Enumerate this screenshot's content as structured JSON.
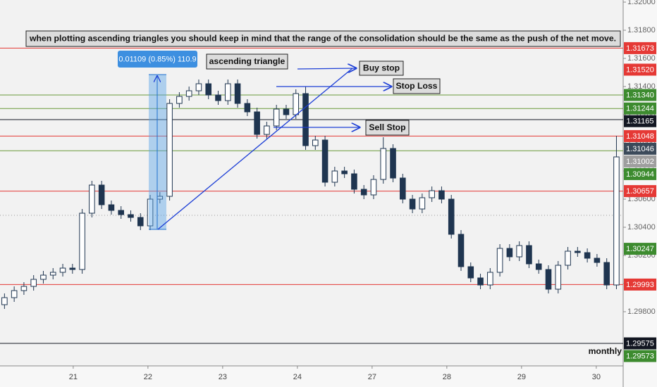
{
  "chart_data": {
    "type": "candlestick",
    "annotations": {
      "note": "when plotting ascending triangles you should keep in mind that the range of the consolidation should be the same as the push of the net move.",
      "pattern": "ascending triangle",
      "buy_stop": "Buy stop",
      "stop_loss": "Stop Loss",
      "sell_stop": "Sell Stop",
      "timeframe": "monthly",
      "measure": "0.01109 (0.85%) 110.9"
    },
    "xlim": [
      0.02,
      8.36
    ],
    "xticks": [
      {
        "value": 1,
        "label": "21"
      },
      {
        "value": 2,
        "label": "22"
      },
      {
        "value": 3,
        "label": "23"
      },
      {
        "value": 4,
        "label": "24"
      },
      {
        "value": 5,
        "label": "27"
      },
      {
        "value": 6,
        "label": "28"
      },
      {
        "value": 7,
        "label": "29"
      },
      {
        "value": 8,
        "label": "30"
      }
    ],
    "ylim": [
      1.29415,
      1.32015
    ],
    "yticks": [
      {
        "value": 1.298,
        "label": "1.29800"
      },
      {
        "value": 1.3,
        "label": "1.30000"
      },
      {
        "value": 1.302,
        "label": "1.30200"
      },
      {
        "value": 1.304,
        "label": "1.30400"
      },
      {
        "value": 1.306,
        "label": "1.30600"
      },
      {
        "value": 1.308,
        "label": "1.30800"
      },
      {
        "value": 1.31,
        "label": "1.31000"
      },
      {
        "value": 1.312,
        "label": "1.31200"
      },
      {
        "value": 1.314,
        "label": "1.31400"
      },
      {
        "value": 1.316,
        "label": "1.31600"
      },
      {
        "value": 1.318,
        "label": "1.31800"
      },
      {
        "value": 1.32,
        "label": "1.32000"
      }
    ],
    "up_color": "#ffffff",
    "down_color": "#1f3550",
    "x": [
      0.08,
      0.21,
      0.34,
      0.47,
      0.6,
      0.73,
      0.86,
      0.99,
      1.12,
      1.25,
      1.38,
      1.51,
      1.64,
      1.77,
      1.9,
      2.03,
      2.16,
      2.29,
      2.42,
      2.55,
      2.68,
      2.81,
      2.94,
      3.07,
      3.2,
      3.33,
      3.46,
      3.59,
      3.72,
      3.85,
      3.98,
      4.11,
      4.24,
      4.37,
      4.5,
      4.63,
      4.76,
      4.89,
      5.02,
      5.15,
      5.28,
      5.41,
      5.54,
      5.67,
      5.8,
      5.93,
      6.06,
      6.19,
      6.32,
      6.45,
      6.58,
      6.71,
      6.84,
      6.97,
      7.1,
      7.23,
      7.36,
      7.49,
      7.62,
      7.75,
      7.88,
      8.01,
      8.14,
      8.27
    ],
    "open": [
      1.2985,
      1.299,
      1.2995,
      1.2998,
      1.3003,
      1.3006,
      1.3008,
      1.3011,
      1.301,
      1.305,
      1.307,
      1.3056,
      1.3052,
      1.3049,
      1.3047,
      1.3041,
      1.306,
      1.3062,
      1.3128,
      1.3133,
      1.3137,
      1.3142,
      1.3134,
      1.313,
      1.3142,
      1.3128,
      1.3122,
      1.3106,
      1.3112,
      1.3124,
      1.312,
      1.3135,
      1.3098,
      1.3102,
      1.3072,
      1.308,
      1.3078,
      1.3067,
      1.3063,
      1.3074,
      1.3096,
      1.3075,
      1.306,
      1.3053,
      1.3061,
      1.3066,
      1.306,
      1.3035,
      1.3012,
      1.3004,
      1.2999,
      1.3008,
      1.3025,
      1.3019,
      1.3027,
      1.3014,
      1.301,
      1.2996,
      1.3013,
      1.3023,
      1.3022,
      1.3018,
      1.3015,
      1.2999
    ],
    "high": [
      1.2993,
      1.2998,
      1.3001,
      1.3006,
      1.3009,
      1.3011,
      1.3014,
      1.3014,
      1.3053,
      1.3073,
      1.3073,
      1.3059,
      1.3055,
      1.3052,
      1.305,
      1.3063,
      1.3065,
      1.3131,
      1.3136,
      1.314,
      1.3145,
      1.3145,
      1.3137,
      1.3145,
      1.3145,
      1.3131,
      1.3125,
      1.3115,
      1.3127,
      1.3127,
      1.3138,
      1.314,
      1.3105,
      1.3105,
      1.3083,
      1.3083,
      1.3081,
      1.307,
      1.3077,
      1.3104,
      1.3099,
      1.3078,
      1.3063,
      1.3064,
      1.3069,
      1.3069,
      1.3063,
      1.3038,
      1.3015,
      1.3007,
      1.3011,
      1.3028,
      1.3028,
      1.303,
      1.303,
      1.3017,
      1.3013,
      1.3016,
      1.3026,
      1.3026,
      1.3025,
      1.3021,
      1.3018,
      1.3105
    ],
    "low": [
      1.2982,
      1.2987,
      1.2992,
      1.2995,
      1.3,
      1.3003,
      1.3005,
      1.3007,
      1.3007,
      1.3047,
      1.3053,
      1.3049,
      1.3046,
      1.3044,
      1.3038,
      1.3038,
      1.3057,
      1.3059,
      1.3125,
      1.313,
      1.3134,
      1.3131,
      1.3127,
      1.3127,
      1.3125,
      1.3119,
      1.3103,
      1.3103,
      1.3109,
      1.3117,
      1.3117,
      1.3095,
      1.3095,
      1.3069,
      1.3069,
      1.3075,
      1.3064,
      1.306,
      1.306,
      1.3071,
      1.3072,
      1.3057,
      1.305,
      1.305,
      1.3058,
      1.3057,
      1.3032,
      1.3009,
      1.3001,
      1.2996,
      1.2996,
      1.3005,
      1.3016,
      1.3016,
      1.3011,
      1.3007,
      1.2993,
      1.2993,
      1.301,
      1.3019,
      1.3015,
      1.3012,
      1.2996,
      1.2996
    ],
    "close": [
      1.299,
      1.2995,
      1.2998,
      1.3003,
      1.3006,
      1.3008,
      1.3011,
      1.301,
      1.305,
      1.307,
      1.3056,
      1.3052,
      1.3049,
      1.3047,
      1.3041,
      1.306,
      1.3062,
      1.3128,
      1.3133,
      1.3137,
      1.3142,
      1.3134,
      1.313,
      1.3142,
      1.3128,
      1.3122,
      1.3106,
      1.3112,
      1.3124,
      1.312,
      1.3135,
      1.3098,
      1.3102,
      1.3072,
      1.308,
      1.3078,
      1.3067,
      1.3063,
      1.3074,
      1.3096,
      1.3075,
      1.306,
      1.3053,
      1.3061,
      1.3066,
      1.306,
      1.3035,
      1.3012,
      1.3004,
      1.2999,
      1.3008,
      1.3025,
      1.3019,
      1.3027,
      1.3014,
      1.301,
      1.2996,
      1.3013,
      1.3023,
      1.3022,
      1.3018,
      1.3015,
      1.2999,
      1.309
    ],
    "levels": [
      {
        "value": 1.31673,
        "color": "#e53935",
        "line_color": "#e53935"
      },
      {
        "value": 1.3152,
        "label": "1.31520",
        "color": "#e53935"
      },
      {
        "value": 1.3134,
        "label": "1.31340",
        "color": "#3d8b2f",
        "line_color": "#6a9a3a"
      },
      {
        "value": 1.31244,
        "color": "#3d8b2f",
        "line_color": "#6a9a3a"
      },
      {
        "value": 1.31165,
        "color": "#131722",
        "line_color": "#131722"
      },
      {
        "value": 1.31048,
        "color": "#e53935",
        "line_color": "#e53935"
      },
      {
        "value": 1.31046,
        "color": "#3b4a5a"
      },
      {
        "value": 1.31002,
        "color": "#9e9e9e"
      },
      {
        "value": 1.30944,
        "color": "#3d8b2f",
        "line_color": "#6a9a3a"
      },
      {
        "value": 1.30657,
        "color": "#e53935",
        "line_color": "#e53935"
      },
      {
        "value": 1.30247,
        "color": "#3d8b2f"
      },
      {
        "value": 1.29993,
        "color": "#e53935",
        "line_color": "#e53935"
      },
      {
        "value": 1.29575,
        "color": "#131722",
        "line_color": "#131722"
      },
      {
        "value": 1.29573,
        "color": "#3d8b2f"
      }
    ]
  }
}
